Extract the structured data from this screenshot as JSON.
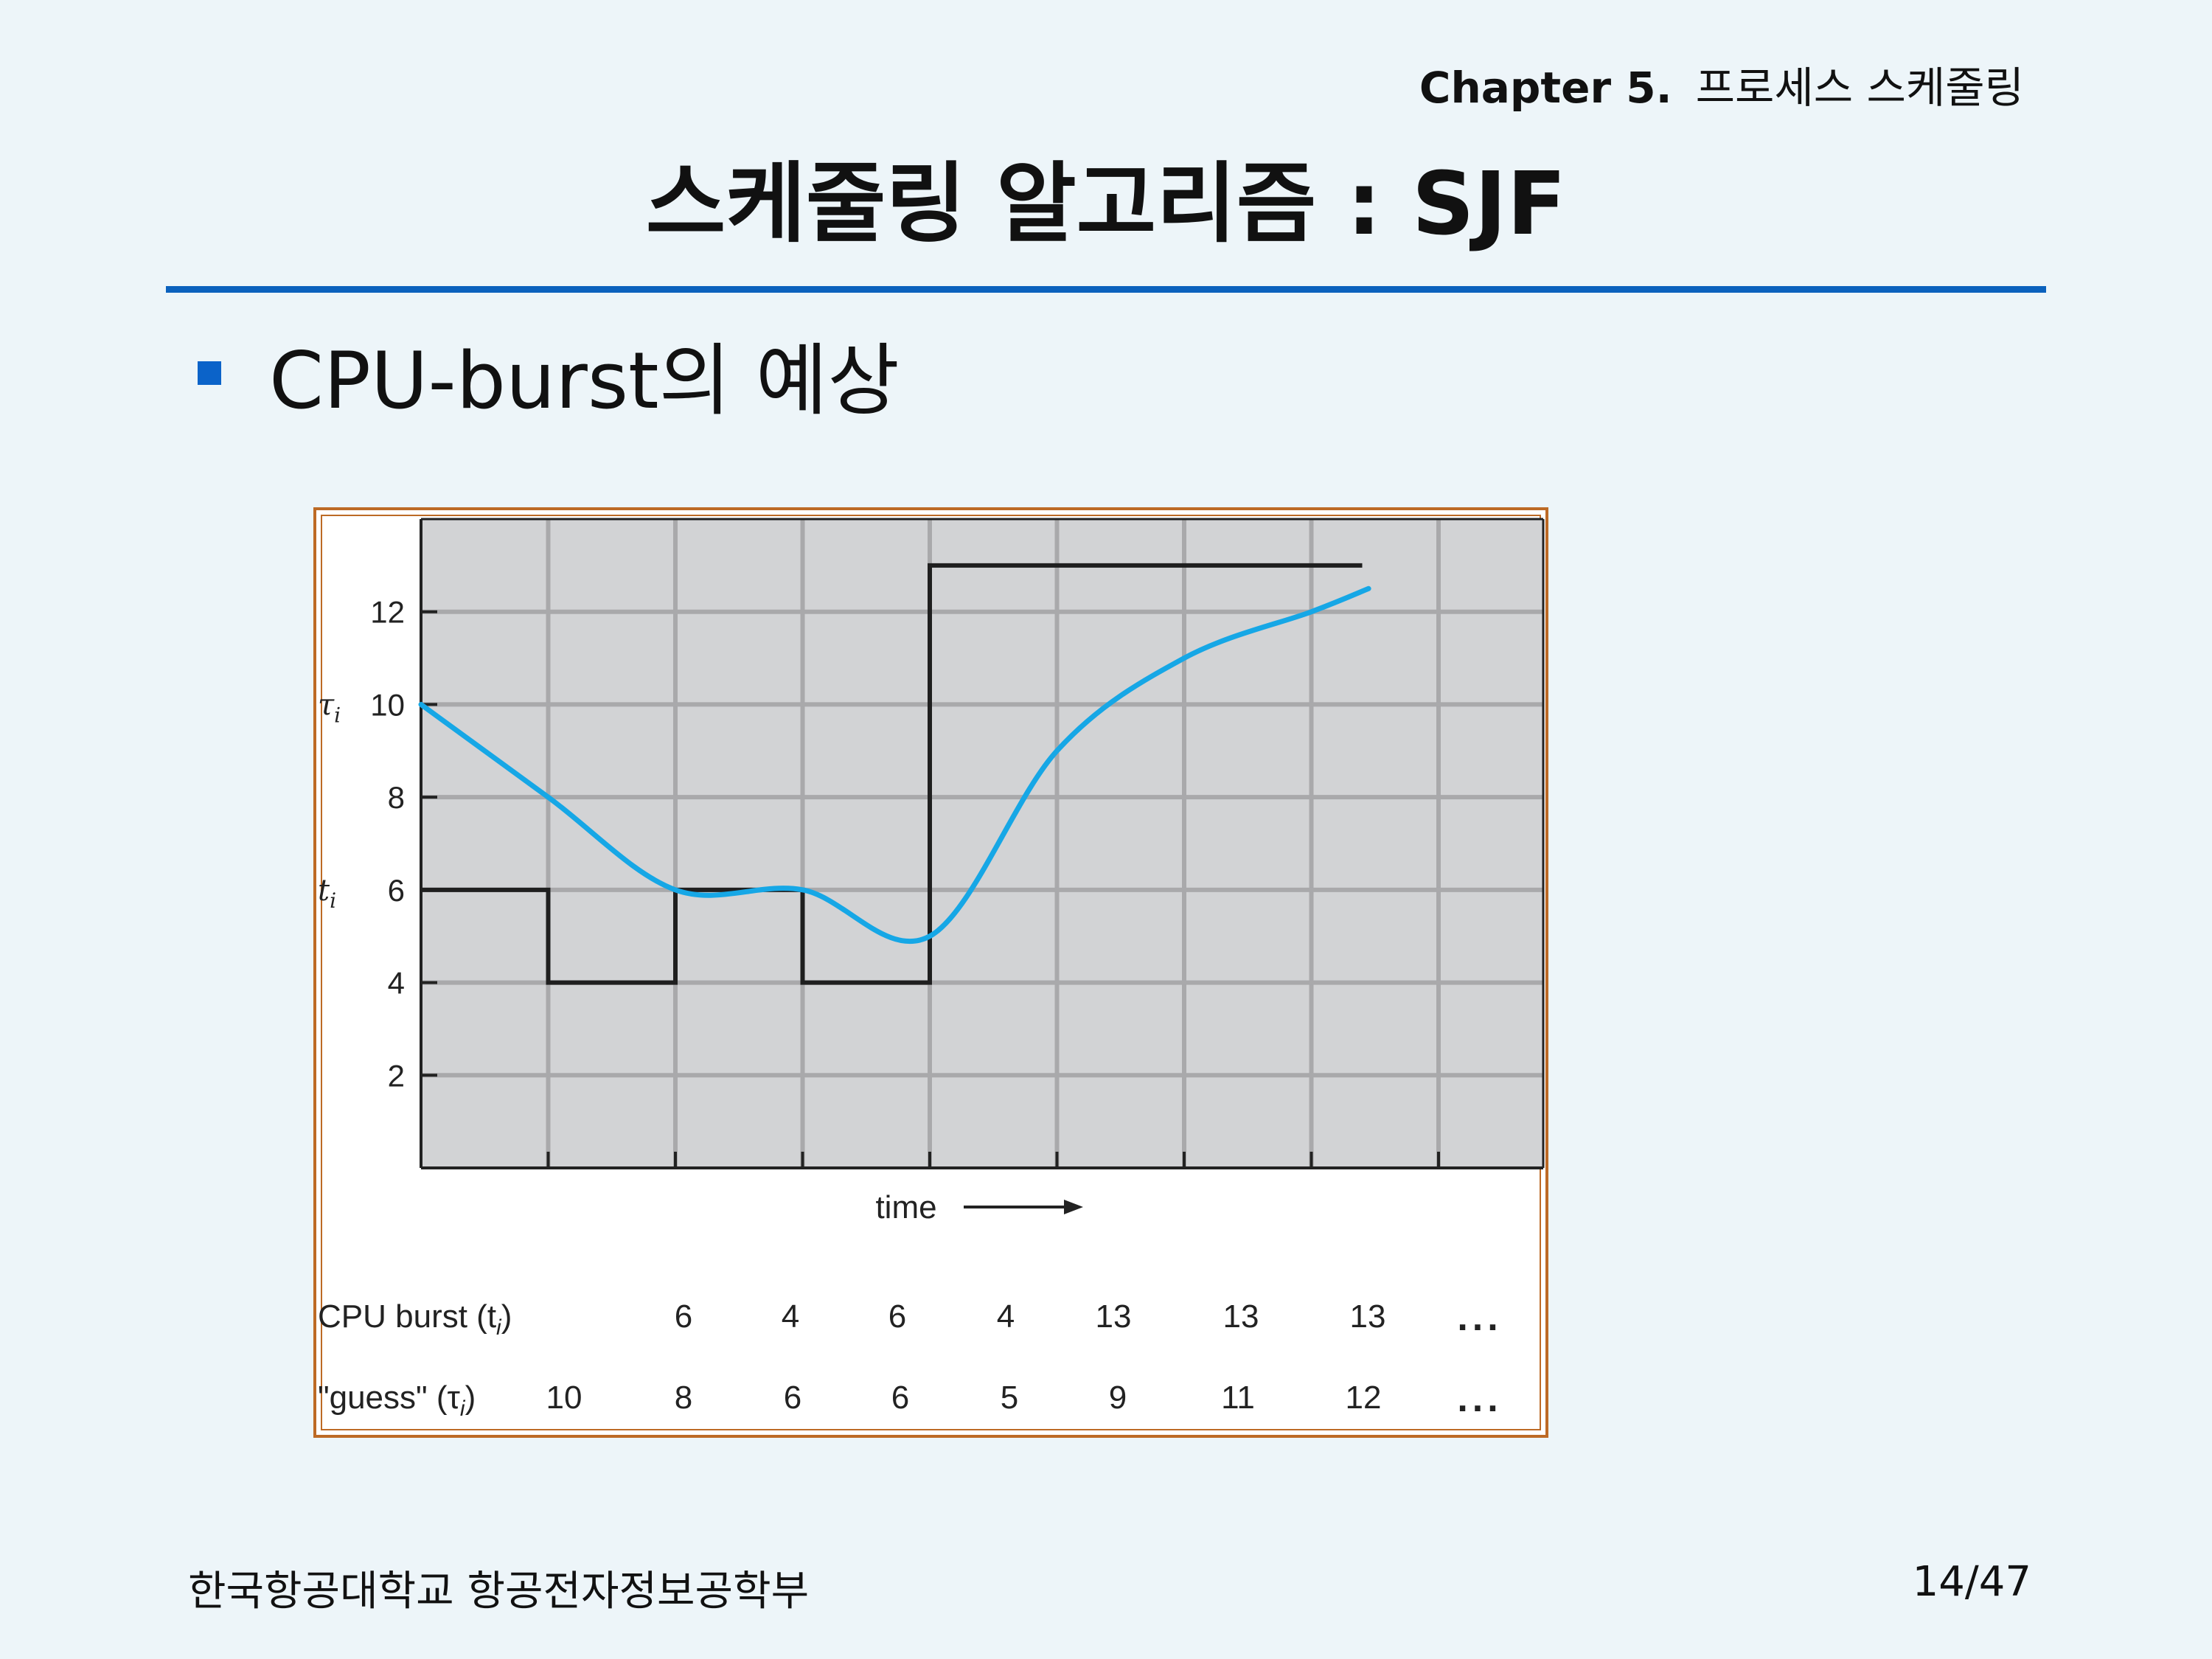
{
  "header": {
    "chapter_label": "Chapter 5.",
    "chapter_title": "프로세스 스케줄링",
    "title": "스케줄링 알고리즘 : SJF"
  },
  "bullet": {
    "text": "CPU-burst의 예상"
  },
  "chart_data": {
    "type": "line",
    "xlabel": "time",
    "ylim": [
      0,
      14
    ],
    "yticks": [
      2,
      4,
      6,
      8,
      10,
      12
    ],
    "grid": true,
    "series": [
      {
        "label": "t_i",
        "kind": "step",
        "color": "#1f1f1f",
        "values": [
          6,
          4,
          6,
          4,
          13,
          13,
          13,
          13
        ]
      },
      {
        "label": "τ_i",
        "kind": "curve",
        "color": "#16a7e6",
        "values": [
          10,
          8,
          6,
          6,
          5,
          9,
          11,
          12,
          12.5
        ]
      }
    ],
    "table": {
      "rows": [
        {
          "label": "CPU burst (t",
          "sub": "i",
          "close": ")",
          "values": [
            "6",
            "4",
            "6",
            "4",
            "13",
            "13",
            "13"
          ],
          "ellipsis": "..."
        },
        {
          "label": "\"guess\" (τ",
          "sub": "i",
          "close": ")",
          "values": [
            "10",
            "8",
            "6",
            "6",
            "5",
            "9",
            "11",
            "12"
          ],
          "ellipsis": "..."
        }
      ]
    }
  },
  "footer": {
    "left": "한국항공대학교 항공전자정보공학부",
    "page": "14/47"
  }
}
